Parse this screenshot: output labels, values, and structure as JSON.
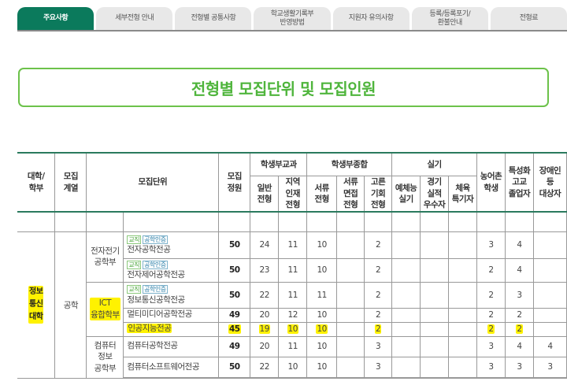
{
  "tabs": [
    {
      "label": "주요사항",
      "active": true
    },
    {
      "label": "세부전형 안내"
    },
    {
      "label": "전형별 공통사항"
    },
    {
      "label": "학교생활기록부\n반영방법"
    },
    {
      "label": "지원자 유의사항"
    },
    {
      "label": "등록/등록포기/\n환불안내"
    },
    {
      "label": "전형료"
    }
  ],
  "title": "전형별 모집단위 및 모집인원",
  "header": {
    "college": "대학/\n학부",
    "field": "모집\n계열",
    "unit": "모집단위",
    "quota": "모집\n정원",
    "group_subject": "학생부교과",
    "group_comprehensive": "학생부종합",
    "group_practical": "실기",
    "general": "일반\n전형",
    "regional": "지역\n인재\n전형",
    "document": "서류\n전형",
    "doc_interview": "서류\n면접\n전형",
    "equal": "고른\n기회\n전형",
    "arts": "예체능\n실기",
    "athletic": "경기\n실적\n우수자",
    "sports": "체육\n특기자",
    "rural": "농어촌\n학생",
    "specialized": "특성화\n고교\n졸업자",
    "disabled": "장애인\n등\n대상자"
  },
  "college": "정보\n통신\n대학",
  "field": "공학",
  "departments": [
    {
      "name": "전자전기\n공학부",
      "rows": 2
    },
    {
      "name": "ICT\n융합학부",
      "rows": 3,
      "highlight": true
    },
    {
      "name": "컴퓨터\n정보\n공학부",
      "rows": 2
    }
  ],
  "badges": {
    "teacher": "교직",
    "engineering": "공학인증"
  },
  "rows": [
    {
      "major": "전자공학전공",
      "badges": true,
      "values": [
        "50",
        "24",
        "11",
        "10",
        "",
        "2",
        "",
        "",
        "",
        "3",
        "4",
        ""
      ]
    },
    {
      "major": "전자제어공학전공",
      "badges": true,
      "values": [
        "50",
        "23",
        "11",
        "10",
        "",
        "2",
        "",
        "",
        "",
        "2",
        "4",
        ""
      ]
    },
    {
      "major": "정보통신공학전공",
      "badges": true,
      "values": [
        "50",
        "22",
        "11",
        "11",
        "",
        "2",
        "",
        "",
        "",
        "2",
        "3",
        ""
      ]
    },
    {
      "major": "멀티미디어공학전공",
      "values": [
        "49",
        "20",
        "12",
        "10",
        "",
        "2",
        "",
        "",
        "",
        "2",
        "2",
        ""
      ]
    },
    {
      "major": "인공지능전공",
      "highlight": true,
      "values": [
        "45",
        "19",
        "10",
        "10",
        "",
        "2",
        "",
        "",
        "",
        "2",
        "2",
        ""
      ]
    },
    {
      "major": "컴퓨터공학전공",
      "values": [
        "49",
        "20",
        "11",
        "10",
        "",
        "3",
        "",
        "",
        "",
        "3",
        "4",
        "4"
      ]
    },
    {
      "major": "컴퓨터소프트웨어전공",
      "values": [
        "50",
        "22",
        "10",
        "10",
        "",
        "3",
        "",
        "",
        "",
        "3",
        "3",
        "3"
      ]
    }
  ],
  "colors": {
    "accent": "#0b7a5c",
    "title_green": "#4fb53c",
    "highlight": "#fff200"
  }
}
